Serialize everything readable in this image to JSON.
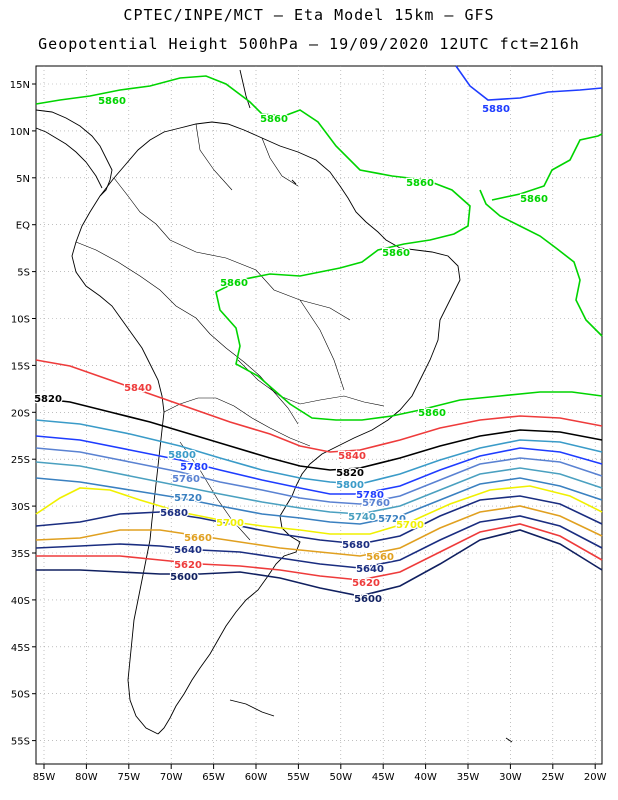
{
  "header": {
    "line1": "CPTEC/INPE/MCT –  Eta Model 15km – GFS",
    "line2": "Geopotential Height 500hPa – 19/09/2020 12UTC fct=216h"
  },
  "map": {
    "lon_ticks": [
      "85W",
      "80W",
      "75W",
      "70W",
      "65W",
      "60W",
      "55W",
      "50W",
      "45W",
      "40W",
      "35W",
      "30W",
      "25W",
      "20W"
    ],
    "lat_ticks": [
      "15N",
      "10N",
      "5N",
      "EQ",
      "5S",
      "10S",
      "15S",
      "20S",
      "25S",
      "30S",
      "35S",
      "40S",
      "45S",
      "50S",
      "55S"
    ]
  },
  "contours": [
    {
      "value": "5880",
      "color": "#1e3cff"
    },
    {
      "value": "5860",
      "color": "#00d400"
    },
    {
      "value": "5840",
      "color": "#ee3b3b"
    },
    {
      "value": "5820",
      "color": "#000000"
    },
    {
      "value": "5800",
      "color": "#3a9bc8"
    },
    {
      "value": "5780",
      "color": "#1e3cff"
    },
    {
      "value": "5760",
      "color": "#5a82d2"
    },
    {
      "value": "5740",
      "color": "#4aa0c0"
    },
    {
      "value": "5720",
      "color": "#3a80c0"
    },
    {
      "value": "5700",
      "color": "#f0f000"
    },
    {
      "value": "5680",
      "color": "#1a2d80"
    },
    {
      "value": "5660",
      "color": "#e0a020"
    },
    {
      "value": "5640",
      "color": "#1a2d80"
    },
    {
      "value": "5620",
      "color": "#ee3b3b"
    },
    {
      "value": "5600",
      "color": "#102060"
    }
  ]
}
